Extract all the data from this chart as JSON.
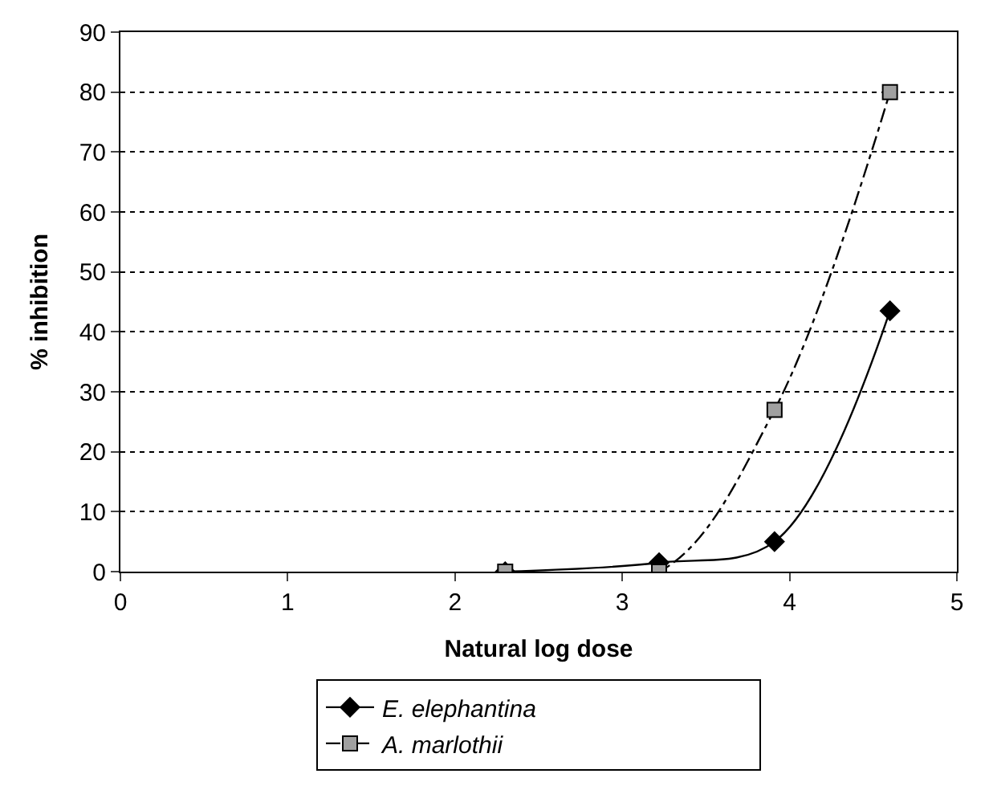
{
  "chart_data": {
    "type": "line",
    "xlabel": "Natural log dose",
    "ylabel": "% inhibition",
    "x": [
      2.3,
      3.22,
      3.91,
      4.6
    ],
    "series": [
      {
        "name": "E. elephantina",
        "color": "#000000",
        "marker": "diamond",
        "line_style": "solid",
        "values": [
          0,
          1.5,
          5,
          43.5
        ]
      },
      {
        "name": "A. marlothii",
        "color": "#a0a0a0",
        "marker": "square",
        "line_style": "dashed",
        "values": [
          0,
          0,
          27,
          80
        ]
      }
    ],
    "xlim": [
      0,
      5
    ],
    "xticks": [
      0,
      1,
      2,
      3,
      4,
      5
    ],
    "ylim": [
      0,
      90
    ],
    "yticks": [
      0,
      10,
      20,
      30,
      40,
      50,
      60,
      70,
      80,
      90
    ],
    "grid": "y",
    "legend": "bottom"
  }
}
